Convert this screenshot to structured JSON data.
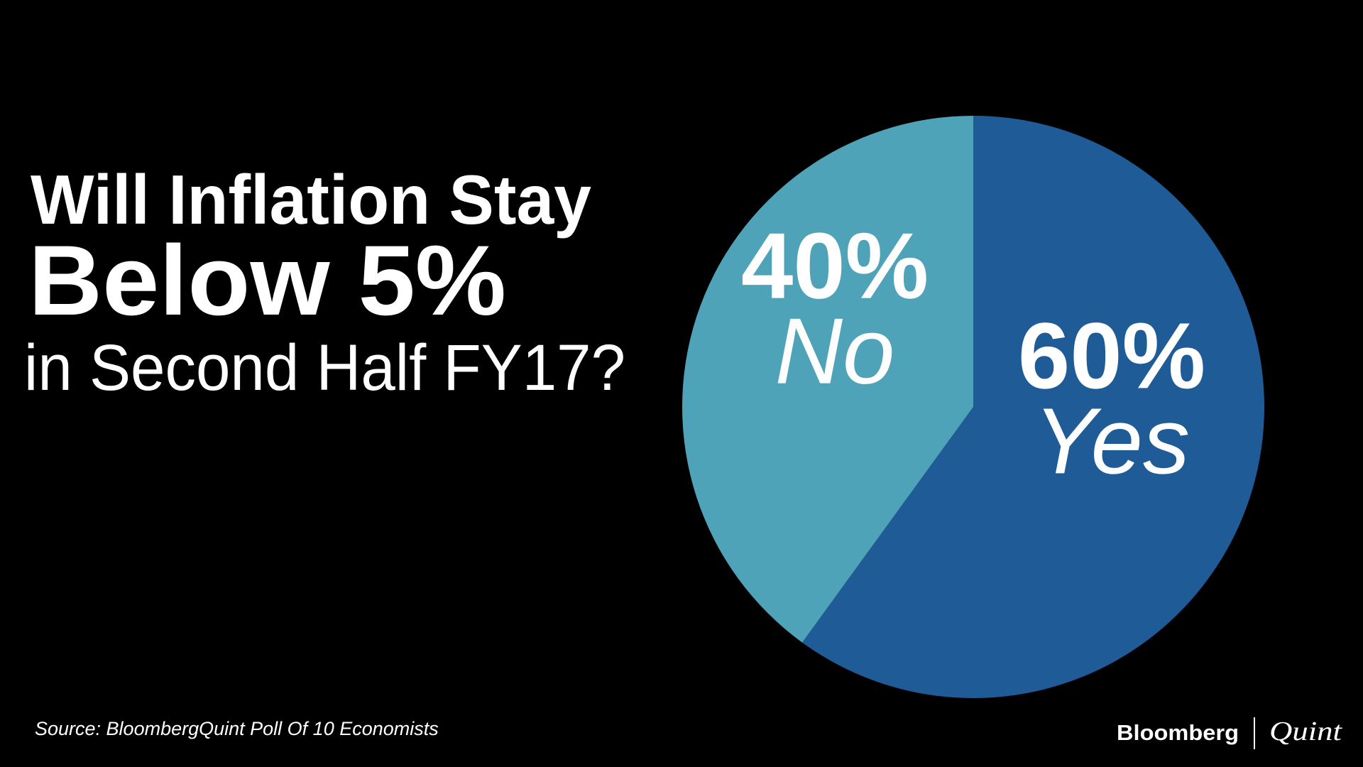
{
  "chart_data": {
    "type": "pie",
    "title": [
      "Will Inflation Stay",
      "Below 5%",
      "in Second Half FY17?"
    ],
    "categories": [
      "Yes",
      "No"
    ],
    "values": [
      60,
      40
    ],
    "value_labels": [
      "60%",
      "40%"
    ],
    "colors": [
      "#1f5b96",
      "#4fa3b8"
    ],
    "source": "Source: BloombergQuint Poll Of 10 Economists",
    "logo": [
      "Bloomberg",
      "Quint"
    ]
  }
}
